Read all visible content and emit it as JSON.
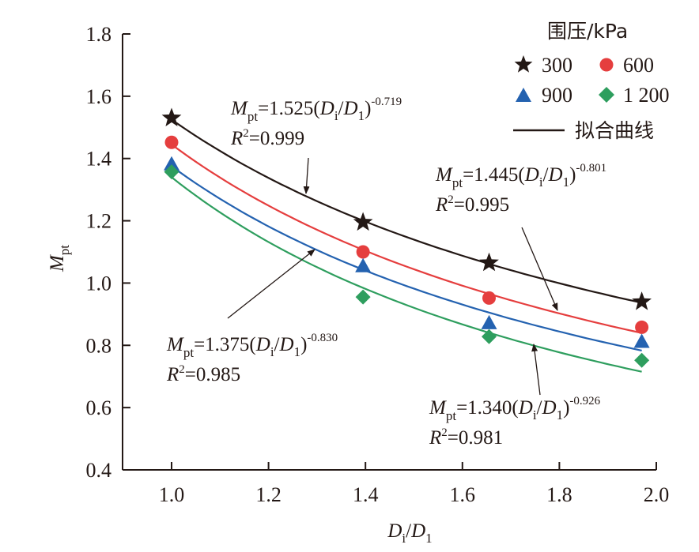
{
  "chart_data": {
    "type": "scatter",
    "title": "",
    "xlabel": "D_i/D_1",
    "ylabel": "M_pt",
    "xlim": [
      0.875,
      2.0
    ],
    "ylim": [
      0.4,
      1.8
    ],
    "xticks": [
      "1.0",
      "1.2",
      "1.4",
      "1.6",
      "1.8",
      "2.0"
    ],
    "yticks": [
      "0.4",
      "0.6",
      "0.8",
      "1.0",
      "1.2",
      "1.4",
      "1.6",
      "1.8"
    ],
    "grid": false,
    "legend": {
      "title": "围压/kPa",
      "position": "top-right",
      "entries": [
        "300",
        "600",
        "900",
        "1 200",
        "拟合曲线"
      ]
    },
    "x": [
      1.0,
      1.395,
      1.655,
      1.97
    ],
    "series": [
      {
        "name": "300",
        "marker": "star",
        "color": "#231815",
        "values": [
          1.53,
          1.195,
          1.065,
          0.94
        ],
        "fit": {
          "a": 1.525,
          "b": -0.719,
          "r2": "0.999"
        }
      },
      {
        "name": "600",
        "marker": "circle",
        "color": "#e53e3e",
        "values": [
          1.452,
          1.1,
          0.952,
          0.858
        ],
        "fit": {
          "a": 1.445,
          "b": -0.801,
          "r2": "0.995"
        }
      },
      {
        "name": "900",
        "marker": "triangle",
        "color": "#2462b0",
        "values": [
          1.382,
          1.055,
          0.872,
          0.812
        ],
        "fit": {
          "a": 1.375,
          "b": -0.83,
          "r2": "0.985"
        }
      },
      {
        "name": "1 200",
        "marker": "diamond",
        "color": "#2e9e5e",
        "values": [
          1.357,
          0.955,
          0.828,
          0.752
        ],
        "fit": {
          "a": 1.34,
          "b": -0.926,
          "r2": "0.981"
        }
      }
    ],
    "annotations": [
      {
        "coef": "1.525",
        "exp": "-0.719",
        "r2": "0.999"
      },
      {
        "coef": "1.445",
        "exp": "-0.801",
        "r2": "0.995"
      },
      {
        "coef": "1.375",
        "exp": "-0.830",
        "r2": "0.985"
      },
      {
        "coef": "1.340",
        "exp": "-0.926",
        "r2": "0.981"
      }
    ],
    "labels": {
      "M": "M",
      "pt": "pt",
      "eq_open": "=",
      "D": "D",
      "i": "i",
      "slash": "/",
      "one": "1",
      "R": "R",
      "two": "2",
      "paren_open": "(",
      "paren_close": ")"
    }
  }
}
